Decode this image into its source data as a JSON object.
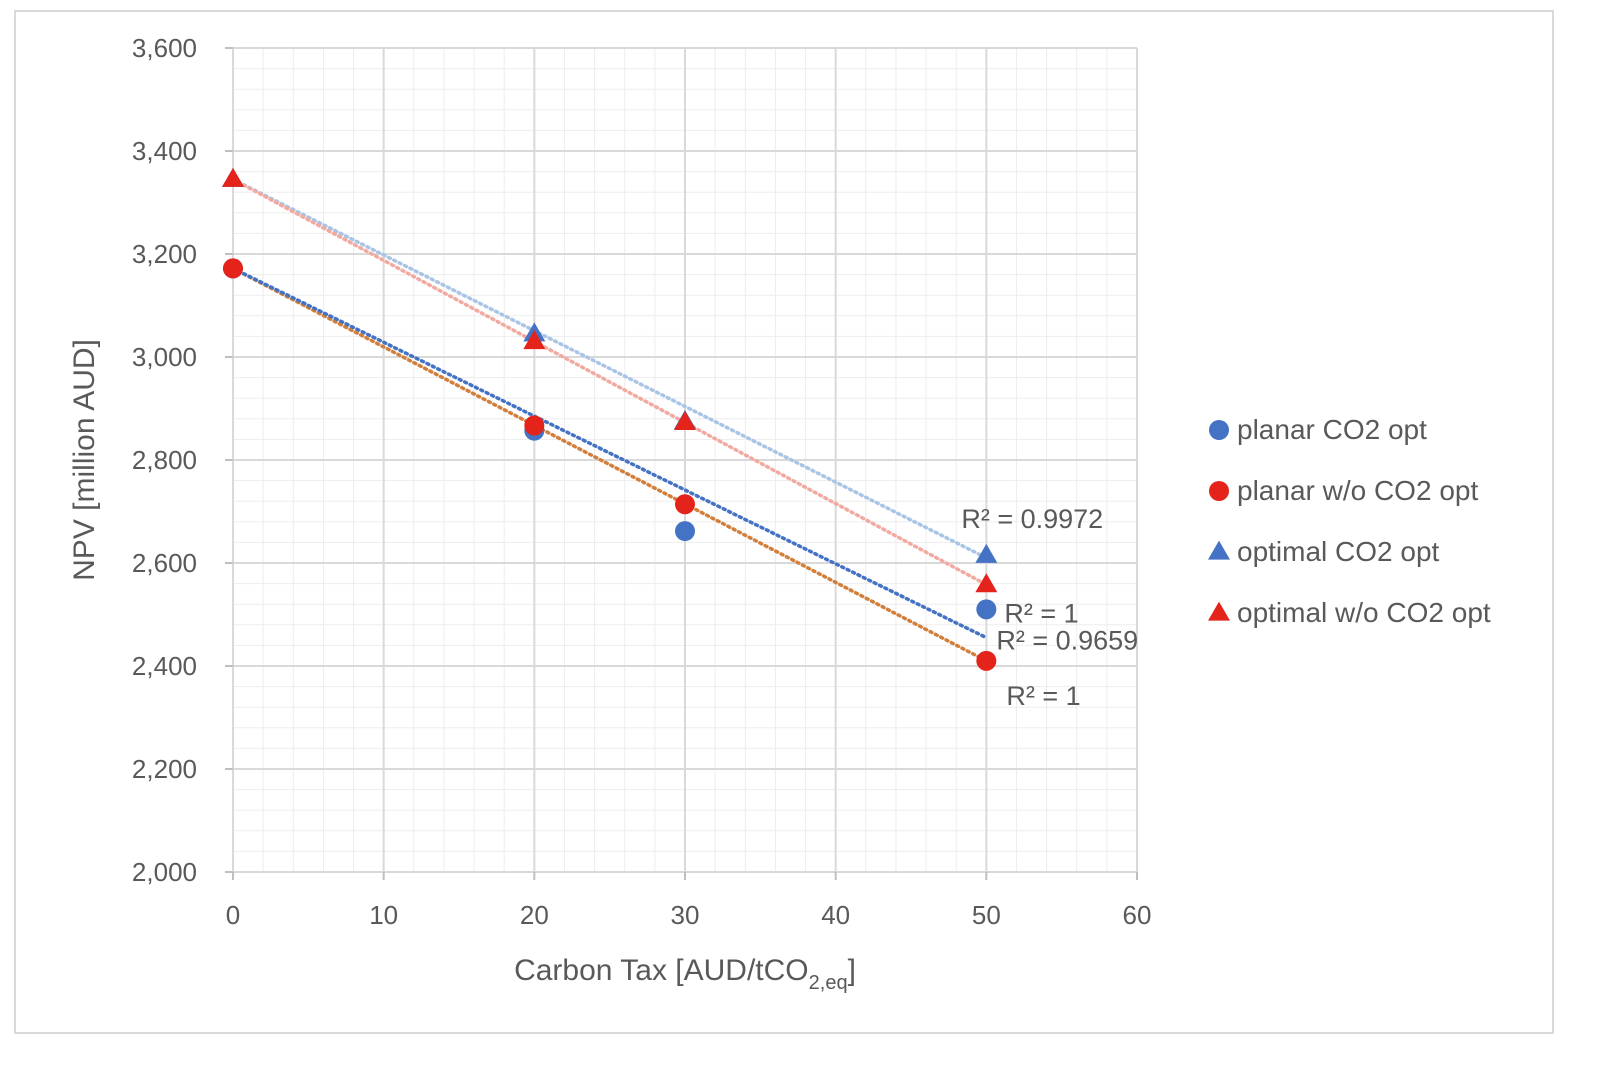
{
  "chart_data": {
    "type": "scatter",
    "xlabel_main": "Carbon Tax [AUD/tCO",
    "xlabel_sub": "2,eq",
    "xlabel_end": "]",
    "ylabel": "NPV [million AUD]",
    "xlim": [
      0,
      60
    ],
    "ylim": [
      2000,
      3600
    ],
    "x_ticks": [
      0,
      10,
      20,
      30,
      40,
      50,
      60
    ],
    "x_tick_labels": [
      "0",
      "10",
      "20",
      "30",
      "40",
      "50",
      "60"
    ],
    "y_ticks": [
      2000,
      2200,
      2400,
      2600,
      2800,
      3000,
      3200,
      3400,
      3600
    ],
    "y_tick_labels": [
      "2,000",
      "2,200",
      "2,400",
      "2,600",
      "2,800",
      "3,000",
      "3,200",
      "3,400",
      "3,600"
    ],
    "grid": "major and minor",
    "legend_position": "right",
    "series": [
      {
        "name": "planar CO2 opt",
        "marker": "circle",
        "color": "#4472C4",
        "trend_color": "#4472C4",
        "x": [
          0,
          20,
          30,
          50
        ],
        "y": [
          3172,
          2857,
          2662,
          2510
        ],
        "trendline": {
          "x": [
            0,
            50
          ],
          "y": [
            3172,
            2455
          ]
        },
        "r2_label": "R² = 0.9659"
      },
      {
        "name": "planar w/o CO2 opt",
        "marker": "circle",
        "color": "#E4231B",
        "trend_color": "#D17F3A",
        "x": [
          0,
          20,
          30,
          50
        ],
        "y": [
          3172,
          2867,
          2714,
          2410
        ],
        "trendline": {
          "x": [
            0,
            50
          ],
          "y": [
            3172,
            2410
          ]
        },
        "r2_label": "R² = 1"
      },
      {
        "name": "optimal CO2 opt",
        "marker": "triangle",
        "color": "#4472C4",
        "trend_color": "#A9C4E4",
        "x": [
          0,
          20,
          30,
          50
        ],
        "y": [
          3345,
          3045,
          2875,
          2615
        ],
        "trendline": {
          "x": [
            0,
            50
          ],
          "y": [
            3345,
            2610
          ]
        },
        "r2_label": "R² = 0.9972"
      },
      {
        "name": "optimal w/o CO2 opt",
        "marker": "triangle",
        "color": "#E4231B",
        "trend_color": "#F1A9A0",
        "x": [
          0,
          20,
          30,
          50
        ],
        "y": [
          3345,
          3030,
          2873,
          2558
        ],
        "trendline": {
          "x": [
            0,
            50
          ],
          "y": [
            3345,
            2558
          ]
        },
        "r2_label": "R² = 1"
      }
    ]
  }
}
